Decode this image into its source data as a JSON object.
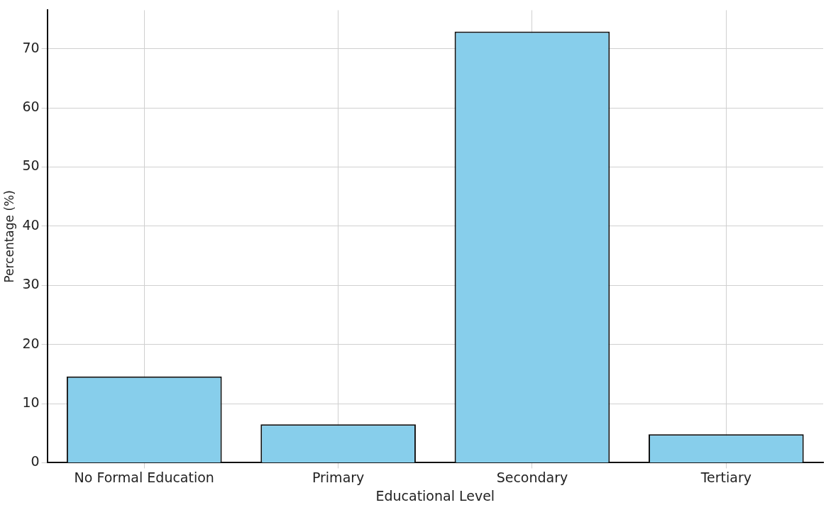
{
  "chart_data": {
    "type": "bar",
    "xlabel": "Educational Level",
    "ylabel": "Percentage (%)",
    "categories": [
      "No Formal Education",
      "Primary",
      "Secondary",
      "Tertiary"
    ],
    "values": [
      14.6,
      6.5,
      72.9,
      4.8
    ],
    "color": "#87ceeb",
    "ylim": [
      0,
      76.5
    ],
    "yticks": [
      0,
      10,
      20,
      30,
      40,
      50,
      60,
      70
    ],
    "grid": true
  }
}
